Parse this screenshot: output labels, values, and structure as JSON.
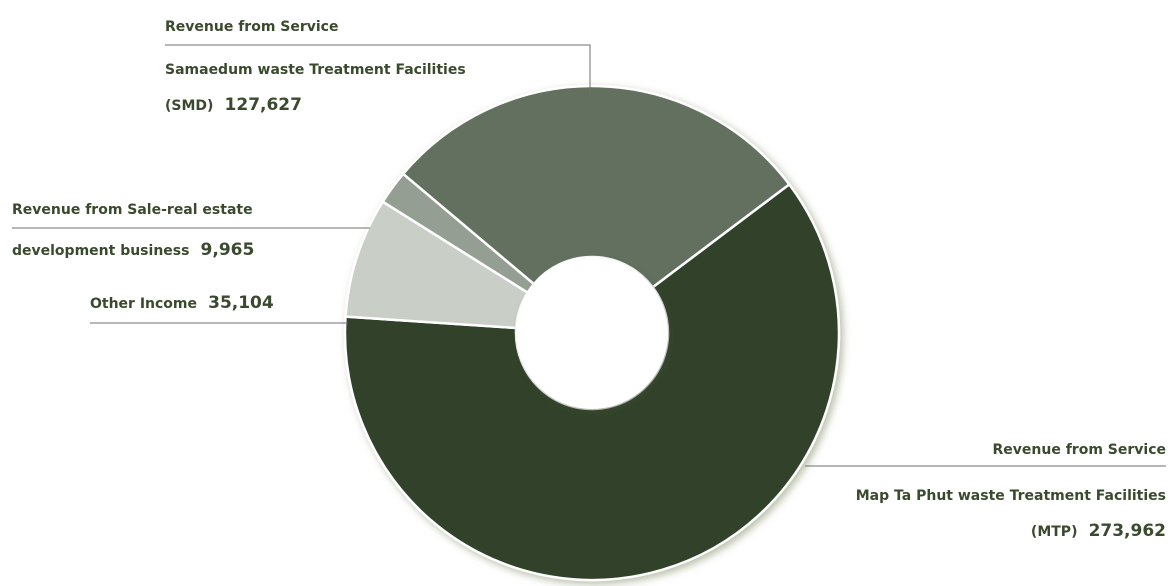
{
  "chart_data": {
    "type": "pie",
    "variant": "donut",
    "slices": [
      {
        "name": "Revenue from Service Map Ta Phut waste Treatment Facilities (MTP)",
        "value": 273962,
        "color": "#32432b"
      },
      {
        "name": "Revenue from Service Samaedum waste Treatment Facilities (SMD)",
        "value": 127627,
        "color": "#647060"
      },
      {
        "name": "Revenue from Sale-real estate development business",
        "value": 9965,
        "color": "#959e92"
      },
      {
        "name": "Other Income",
        "value": 35104,
        "color": "#c9cec6"
      }
    ]
  },
  "labels": {
    "smd": {
      "line1": "Revenue from Service",
      "line2": "Samaedum waste Treatment Facilities",
      "line3_prefix": "(SMD)",
      "line3_value": "127,627"
    },
    "realestate": {
      "line1": "Revenue from Sale-real estate",
      "line2_prefix": "development business",
      "line2_value": "9,965"
    },
    "other": {
      "prefix": "Other Income",
      "value": "35,104"
    },
    "mtp": {
      "line1": "Revenue from Service",
      "line2": "Map Ta Phut waste Treatment Facilities",
      "line3_prefix": "(MTP)",
      "line3_value": "273,962"
    }
  }
}
